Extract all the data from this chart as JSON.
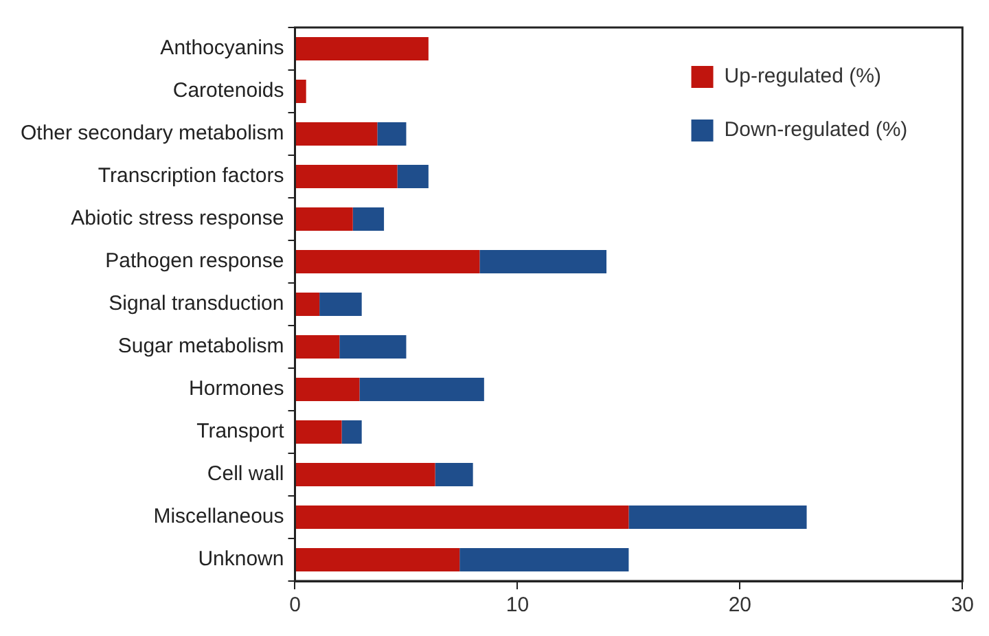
{
  "chart_data": {
    "type": "bar",
    "orientation": "horizontal",
    "stacked": true,
    "categories": [
      "Anthocyanins",
      "Carotenoids",
      "Other secondary metabolism",
      "Transcription factors",
      "Abiotic stress response",
      "Pathogen response",
      "Signal transduction",
      "Sugar metabolism",
      "Hormones",
      "Transport",
      "Cell wall",
      "Miscellaneous",
      "Unknown"
    ],
    "series": [
      {
        "name": "Up-regulated (%)",
        "color": "#c0150e",
        "values": [
          6.0,
          0.5,
          3.7,
          4.6,
          2.6,
          8.3,
          1.1,
          2.0,
          2.9,
          2.1,
          6.3,
          15.0,
          7.4
        ]
      },
      {
        "name": "Down-regulated (%)",
        "color": "#1f4e8c",
        "values": [
          0,
          0,
          1.3,
          1.4,
          1.4,
          5.7,
          1.9,
          3.0,
          5.6,
          0.9,
          1.7,
          8.0,
          7.6
        ]
      }
    ],
    "xlim": [
      0,
      30
    ],
    "xticks": [
      0,
      10,
      20,
      30
    ],
    "grid": false,
    "legend": "top right"
  }
}
